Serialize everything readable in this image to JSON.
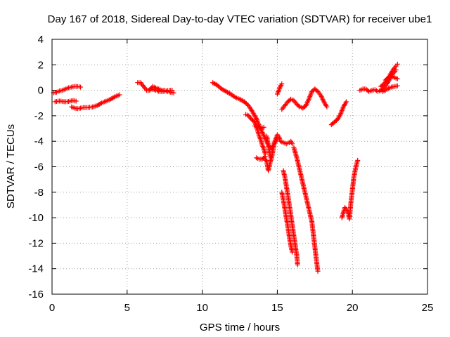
{
  "chart_data": {
    "type": "scatter",
    "title": "Day 167 of 2018, Sidereal Day-to-day VTEC variation (SDTVAR) for receiver ube1",
    "xlabel": "GPS time / hours",
    "ylabel": "SDTVAR / TECUs",
    "xlim": [
      0,
      25
    ],
    "ylim": [
      -16,
      4
    ],
    "xticks": [
      0,
      5,
      10,
      15,
      20,
      25
    ],
    "yticks": [
      -16,
      -14,
      -12,
      -10,
      -8,
      -6,
      -4,
      -2,
      0,
      2,
      4
    ],
    "xtick_labels": [
      "0",
      "5",
      "10",
      "15",
      "20",
      "25"
    ],
    "ytick_labels": [
      "-16",
      "-14",
      "-12",
      "-10",
      "-8",
      "-6",
      "-4",
      "-2",
      "0",
      "2",
      "4"
    ],
    "grid": true,
    "grid_style": "dotted",
    "legend": "none",
    "marker": "+",
    "marker_color": "#ff0000",
    "series": [
      {
        "points": [
          [
            0.1,
            -0.2
          ],
          [
            0.3,
            -0.15
          ],
          [
            0.5,
            -0.05
          ],
          [
            0.7,
            0.0
          ],
          [
            0.9,
            0.1
          ],
          [
            1.1,
            0.2
          ],
          [
            1.3,
            0.25
          ],
          [
            1.5,
            0.3
          ],
          [
            1.7,
            0.3
          ],
          [
            1.9,
            0.25
          ]
        ]
      },
      {
        "points": [
          [
            0.2,
            -0.9
          ],
          [
            0.4,
            -0.85
          ],
          [
            0.6,
            -0.85
          ],
          [
            0.8,
            -0.9
          ],
          [
            1.0,
            -0.9
          ],
          [
            1.2,
            -0.85
          ],
          [
            1.4,
            -0.8
          ],
          [
            1.6,
            -0.85
          ]
        ]
      },
      {
        "points": [
          [
            1.3,
            -1.3
          ],
          [
            1.5,
            -1.4
          ],
          [
            1.7,
            -1.45
          ],
          [
            1.9,
            -1.4
          ],
          [
            2.1,
            -1.35
          ],
          [
            2.4,
            -1.35
          ],
          [
            2.7,
            -1.3
          ],
          [
            3.0,
            -1.2
          ],
          [
            3.3,
            -1.0
          ],
          [
            3.6,
            -0.85
          ],
          [
            3.9,
            -0.7
          ],
          [
            4.2,
            -0.5
          ],
          [
            4.5,
            -0.35
          ]
        ]
      },
      {
        "points": [
          [
            5.7,
            0.6
          ],
          [
            5.9,
            0.6
          ],
          [
            6.1,
            0.3
          ],
          [
            6.3,
            0.0
          ],
          [
            6.5,
            0.0
          ],
          [
            6.7,
            0.3
          ],
          [
            6.9,
            0.2
          ],
          [
            7.1,
            0.1
          ],
          [
            7.3,
            0.0
          ],
          [
            7.5,
            0.0
          ],
          [
            7.7,
            -0.1
          ],
          [
            7.9,
            -0.15
          ],
          [
            8.1,
            -0.2
          ]
        ]
      },
      {
        "points": [
          [
            6.4,
            0.0
          ],
          [
            6.6,
            0.1
          ],
          [
            6.8,
            0.05
          ],
          [
            7.0,
            -0.05
          ],
          [
            7.2,
            -0.1
          ],
          [
            7.4,
            -0.1
          ],
          [
            7.6,
            -0.05
          ],
          [
            7.8,
            0.0
          ],
          [
            8.0,
            0.0
          ]
        ]
      },
      {
        "points": [
          [
            10.7,
            0.6
          ],
          [
            11.0,
            0.4
          ],
          [
            11.3,
            0.1
          ],
          [
            11.6,
            -0.1
          ],
          [
            11.9,
            -0.3
          ],
          [
            12.2,
            -0.55
          ],
          [
            12.5,
            -0.7
          ],
          [
            12.8,
            -0.9
          ],
          [
            13.0,
            -1.1
          ],
          [
            13.2,
            -1.4
          ],
          [
            13.4,
            -1.8
          ],
          [
            13.6,
            -2.2
          ],
          [
            13.8,
            -2.8
          ],
          [
            14.0,
            -3.3
          ],
          [
            14.2,
            -3.8
          ],
          [
            14.4,
            -4.3
          ],
          [
            14.6,
            -4.6
          ],
          [
            14.8,
            -4.2
          ],
          [
            15.0,
            -3.8
          ]
        ]
      },
      {
        "points": [
          [
            12.9,
            -1.9
          ],
          [
            13.1,
            -2.0
          ],
          [
            13.3,
            -2.3
          ],
          [
            13.5,
            -2.5
          ],
          [
            13.6,
            -2.8
          ],
          [
            13.7,
            -3.2
          ],
          [
            13.8,
            -3.6
          ],
          [
            13.9,
            -3.9
          ],
          [
            14.0,
            -4.3
          ],
          [
            14.1,
            -4.6
          ],
          [
            14.2,
            -5.0
          ]
        ]
      },
      {
        "points": [
          [
            13.5,
            -2.8
          ],
          [
            13.7,
            -2.9
          ],
          [
            13.9,
            -3.0
          ],
          [
            14.1,
            -2.9
          ]
        ]
      },
      {
        "points": [
          [
            14.3,
            -3.6
          ],
          [
            14.4,
            -4.3
          ],
          [
            14.5,
            -5.0
          ],
          [
            14.6,
            -5.4
          ],
          [
            14.7,
            -4.8
          ],
          [
            14.8,
            -4.1
          ],
          [
            14.9,
            -3.8
          ],
          [
            15.0,
            -3.5
          ],
          [
            15.1,
            -3.6
          ],
          [
            15.2,
            -4.0
          ],
          [
            15.4,
            -4.1
          ],
          [
            15.6,
            -4.2
          ],
          [
            15.8,
            -4.1
          ],
          [
            15.9,
            -4.0
          ],
          [
            16.0,
            -4.2
          ]
        ]
      },
      {
        "points": [
          [
            14.2,
            -5.4
          ],
          [
            14.3,
            -5.6
          ],
          [
            14.35,
            -6.0
          ],
          [
            14.4,
            -6.3
          ],
          [
            14.5,
            -5.8
          ],
          [
            14.6,
            -5.3
          ]
        ]
      },
      {
        "points": [
          [
            13.6,
            -5.3
          ],
          [
            13.8,
            -5.4
          ],
          [
            14.0,
            -5.4
          ],
          [
            14.2,
            -5.2
          ]
        ]
      },
      {
        "points": [
          [
            16.1,
            -4.5
          ],
          [
            16.3,
            -5.3
          ],
          [
            16.5,
            -6.3
          ],
          [
            16.7,
            -7.3
          ],
          [
            16.9,
            -8.3
          ],
          [
            17.1,
            -9.3
          ],
          [
            17.3,
            -10.3
          ],
          [
            17.4,
            -11.3
          ],
          [
            17.5,
            -12.3
          ],
          [
            17.6,
            -13.3
          ],
          [
            17.7,
            -14.2
          ]
        ]
      },
      {
        "points": [
          [
            15.4,
            -6.3
          ],
          [
            15.5,
            -6.8
          ],
          [
            15.6,
            -7.5
          ],
          [
            15.7,
            -8.2
          ],
          [
            15.8,
            -9.0
          ],
          [
            15.9,
            -9.8
          ],
          [
            16.0,
            -10.6
          ],
          [
            16.1,
            -11.4
          ],
          [
            16.2,
            -12.2
          ],
          [
            16.3,
            -13.0
          ],
          [
            16.35,
            -13.7
          ]
        ]
      },
      {
        "points": [
          [
            15.3,
            -8.0
          ],
          [
            15.4,
            -8.6
          ],
          [
            15.5,
            -9.3
          ],
          [
            15.6,
            -10.0
          ],
          [
            15.7,
            -10.7
          ],
          [
            15.8,
            -11.5
          ],
          [
            15.9,
            -12.2
          ],
          [
            16.0,
            -12.7
          ]
        ]
      },
      {
        "points": [
          [
            15.0,
            -0.3
          ],
          [
            15.1,
            0.0
          ],
          [
            15.2,
            0.3
          ],
          [
            15.3,
            0.5
          ]
        ]
      },
      {
        "points": [
          [
            15.3,
            -1.5
          ],
          [
            15.5,
            -1.2
          ],
          [
            15.7,
            -0.9
          ],
          [
            15.9,
            -0.7
          ],
          [
            16.1,
            -0.8
          ],
          [
            16.3,
            -1.1
          ],
          [
            16.5,
            -1.3
          ],
          [
            16.7,
            -1.4
          ],
          [
            16.9,
            -1.2
          ],
          [
            17.1,
            -0.7
          ],
          [
            17.3,
            -0.1
          ],
          [
            17.5,
            0.1
          ],
          [
            17.7,
            -0.1
          ],
          [
            17.9,
            -0.4
          ],
          [
            18.1,
            -0.9
          ],
          [
            18.3,
            -1.3
          ]
        ]
      },
      {
        "points": [
          [
            18.6,
            -2.7
          ],
          [
            18.8,
            -2.5
          ],
          [
            19.0,
            -2.3
          ],
          [
            19.2,
            -1.9
          ],
          [
            19.4,
            -1.3
          ],
          [
            19.6,
            -0.9
          ]
        ]
      },
      {
        "points": [
          [
            19.3,
            -10.0
          ],
          [
            19.4,
            -9.6
          ],
          [
            19.5,
            -9.2
          ],
          [
            19.7,
            -9.5
          ],
          [
            19.8,
            -10.1
          ],
          [
            19.9,
            -8.8
          ],
          [
            20.0,
            -7.8
          ],
          [
            20.1,
            -6.8
          ],
          [
            20.2,
            -6.2
          ],
          [
            20.3,
            -5.7
          ],
          [
            20.35,
            -5.5
          ]
        ]
      },
      {
        "points": [
          [
            20.5,
            0.0
          ],
          [
            20.7,
            0.1
          ],
          [
            20.9,
            0.1
          ],
          [
            21.1,
            -0.1
          ],
          [
            21.3,
            0.0
          ],
          [
            21.5,
            0.05
          ],
          [
            21.7,
            -0.1
          ],
          [
            21.9,
            0.0
          ],
          [
            22.1,
            0.2
          ],
          [
            22.3,
            0.5
          ],
          [
            22.5,
            0.9
          ],
          [
            22.7,
            1.3
          ],
          [
            22.9,
            1.6
          ]
        ]
      },
      {
        "points": [
          [
            21.9,
            0.3
          ],
          [
            22.1,
            0.5
          ],
          [
            22.3,
            0.8
          ],
          [
            22.5,
            1.2
          ],
          [
            22.7,
            1.6
          ],
          [
            22.9,
            1.9
          ],
          [
            23.0,
            2.05
          ]
        ]
      },
      {
        "points": [
          [
            22.2,
            0.8
          ],
          [
            22.4,
            1.0
          ],
          [
            22.6,
            1.1
          ],
          [
            22.8,
            1.0
          ],
          [
            23.0,
            0.9
          ]
        ]
      },
      {
        "points": [
          [
            22.0,
            -0.1
          ],
          [
            22.2,
            0.0
          ],
          [
            22.4,
            0.15
          ],
          [
            22.6,
            0.25
          ],
          [
            22.8,
            0.3
          ],
          [
            23.0,
            0.35
          ]
        ]
      }
    ]
  }
}
